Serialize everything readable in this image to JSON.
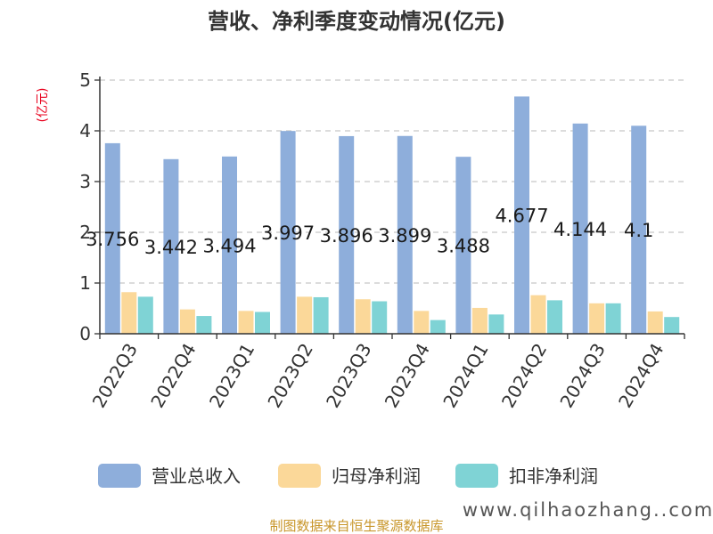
{
  "chart_data": {
    "type": "bar",
    "title": "营收、净利季度变动情况(亿元)",
    "ylabel": "(亿元)",
    "ylim": [
      0,
      5
    ],
    "yticks": [
      0,
      1,
      2,
      3,
      4,
      5
    ],
    "grid": true,
    "legend_position": "bottom",
    "categories": [
      "2022Q3",
      "2022Q4",
      "2023Q1",
      "2023Q2",
      "2023Q3",
      "2023Q4",
      "2024Q1",
      "2024Q2",
      "2024Q3",
      "2024Q4"
    ],
    "series": [
      {
        "name": "营业总收入",
        "color": "#8eaedb",
        "values": [
          3.756,
          3.442,
          3.494,
          3.997,
          3.896,
          3.899,
          3.488,
          4.677,
          4.144,
          4.1
        ],
        "labels": [
          "3.756",
          "3.442",
          "3.494",
          "3.997",
          "3.896",
          "3.899",
          "3.488",
          "4.677",
          "4.144",
          "4.1"
        ]
      },
      {
        "name": "归母净利润",
        "color": "#fbd899",
        "values": [
          0.82,
          0.48,
          0.45,
          0.73,
          0.68,
          0.45,
          0.51,
          0.76,
          0.6,
          0.44
        ]
      },
      {
        "name": "扣非净利润",
        "color": "#7fd3d5",
        "values": [
          0.73,
          0.35,
          0.43,
          0.72,
          0.64,
          0.27,
          0.38,
          0.66,
          0.6,
          0.33
        ]
      }
    ]
  },
  "footer": {
    "source": "制图数据来自恒生聚源数据库",
    "watermark": "www.qilhaozhang..com"
  }
}
